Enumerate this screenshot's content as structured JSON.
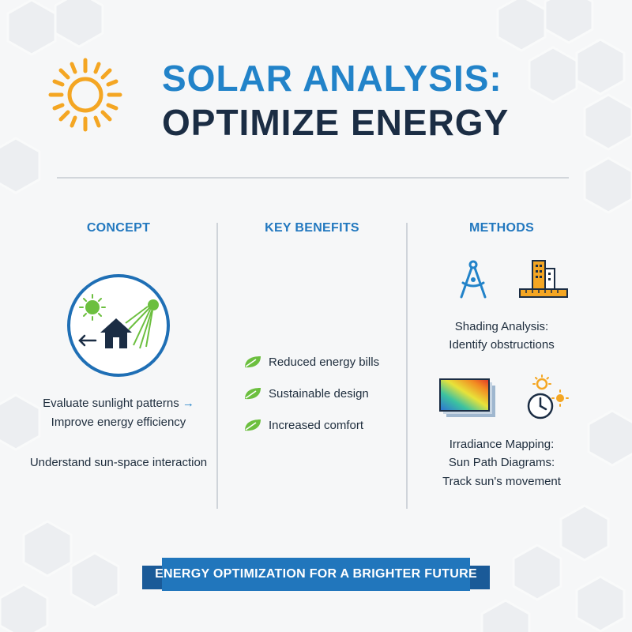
{
  "header": {
    "title_line1": "SOLAR ANALYSIS:",
    "title_line2": "OPTIMIZE ENERGY"
  },
  "columns": {
    "concept": {
      "heading": "CONCEPT",
      "line1": "Evaluate sunlight patterns",
      "line1_arrow": "→",
      "line2": "Improve energy efficiency",
      "line3": "Understand sun-space interaction"
    },
    "benefits": {
      "heading": "KEY BENEFITS",
      "items": [
        "Reduced energy bills",
        "Sustainable design",
        "Increased comfort"
      ]
    },
    "methods": {
      "heading": "METHODS",
      "shading_title": "Shading Analysis:",
      "shading_desc": "Identify obstructions",
      "irradiance_title": "Irradiance Mapping:",
      "sunpath_title": "Sun Path Diagrams:",
      "sunpath_desc": "Track sun's movement"
    }
  },
  "banner": {
    "text": "ENERGY OPTIMIZATION FOR A BRIGHTER FUTURE"
  },
  "colors": {
    "accent_blue": "#2283c9",
    "navy": "#1b2d44",
    "sun_orange": "#f4a623",
    "leaf_green": "#6cbf3f",
    "banner_blue": "#2176bc"
  },
  "icons": {
    "logo": "sun-icon",
    "concept": "house-sun-icon",
    "benefit_bullet": "leaf-icon",
    "shading_1": "compass-icon",
    "shading_2": "building-ruler-icon",
    "irradiance": "heatmap-icon",
    "sunpath": "clock-sun-icon"
  }
}
